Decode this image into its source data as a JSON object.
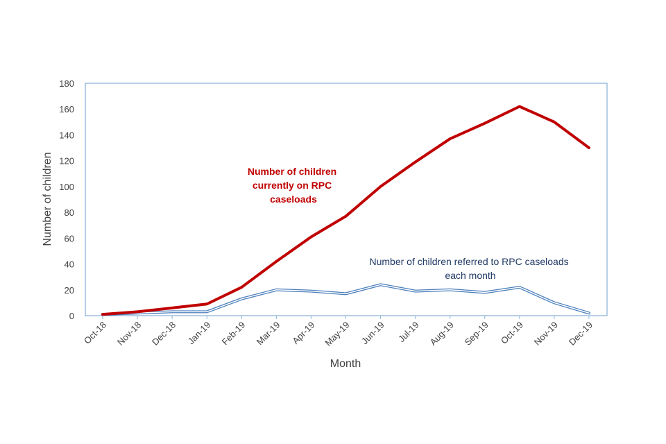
{
  "chart_data": {
    "type": "line",
    "title": "",
    "xlabel": "Month",
    "ylabel": "Number of children",
    "ylim": [
      0,
      180
    ],
    "yticks": [
      0,
      20,
      40,
      60,
      80,
      100,
      120,
      140,
      160,
      180
    ],
    "grid": false,
    "categories": [
      "Oct-18",
      "Nov-18",
      "Dec-18",
      "Jan-19",
      "Feb-19",
      "Mar-19",
      "Apr-19",
      "May-19",
      "Jun-19",
      "Jul-19",
      "Aug-19",
      "Sep-19",
      "Oct-19",
      "Nov-19",
      "Dec-19"
    ],
    "series": [
      {
        "name": "Number of children currently on RPC caseloads",
        "color": "#c00000",
        "values": [
          1,
          3,
          6,
          9,
          22,
          42,
          61,
          77,
          100,
          119,
          137,
          149,
          162,
          150,
          130
        ]
      },
      {
        "name": "Number of children referred to RPC caseloads each month",
        "color": "#4a7ebb",
        "values": [
          1,
          2,
          3,
          3,
          13,
          20,
          19,
          17,
          24,
          19,
          20,
          18,
          22,
          10,
          2
        ]
      }
    ],
    "annotations": [
      {
        "series": 0,
        "lines": [
          "Number of children",
          "currently on RPC",
          "caseloads"
        ]
      },
      {
        "series": 1,
        "lines": [
          "Number of children referred to RPC caseloads",
          "each month"
        ]
      }
    ]
  }
}
